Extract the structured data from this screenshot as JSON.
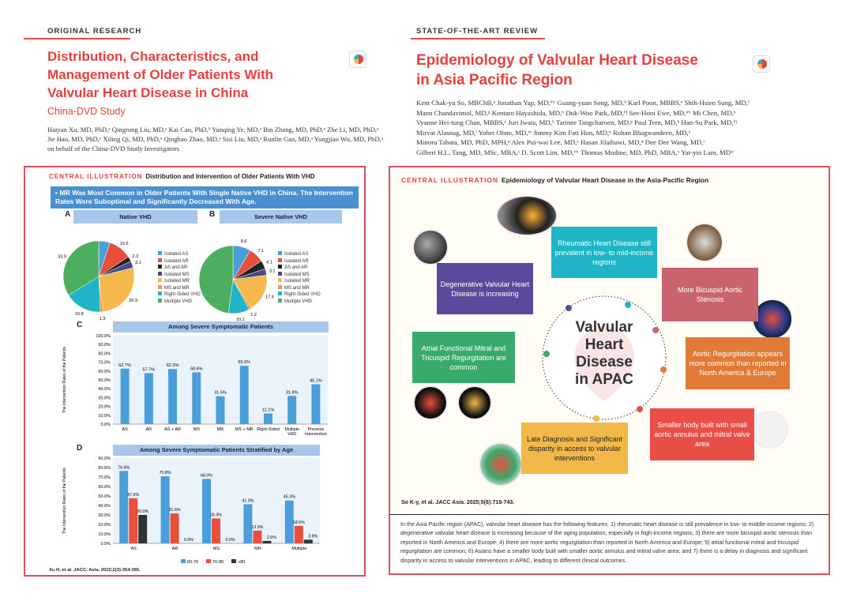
{
  "left": {
    "kicker": "ORIGINAL RESEARCH",
    "title_lines": [
      "Distribution, Characteristics, and",
      "Management of Older Patients With",
      "Valvular Heart Disease in China"
    ],
    "subtitle": "China-DVD Study",
    "authors_lines": [
      "Haiyan Xu, MD, PhD,ᵃ Qingrong Liu, MD,ᵃ Kai Cao, PhD,ᵇ Yunqing Ye, MD,ᵃ Bin Zhang, MD, PhD,ᵃ Zhe Li, MD, PhD,ᵃ",
      "Jie Hao, MD, PhD,ᵃ Xiling Qi, MD, PhD,ᵃ Qinghao Zhao, MD,ᵃ Sisi Liu, MD,ᵃ Runlin Gao, MD,ᵃ Yongjian Wu, MD, PhD,ᵃ",
      "on behalf of the China-DVD Study Investigators"
    ],
    "ci_label": "CENTRAL ILLUSTRATION",
    "ci_title": "Distribution and Intervention of Older Patients With VHD",
    "banner": "• MR Was Most Common in Older Patients With Single Native VHD in China. The Intervention Rates Were Suboptimal and Significantly Decreased With Age.",
    "panel_a": "A",
    "panel_b": "B",
    "panel_c": "C",
    "panel_d": "D",
    "citation": "Xu H, et al. JACC: Asia. 2022;2(3):354-365."
  },
  "right": {
    "kicker": "STATE-OF-THE-ART REVIEW",
    "title_lines": [
      "Epidemiology of Valvular Heart Disease",
      "in Asia Pacific Region"
    ],
    "authors_lines": [
      "Kent Chak-yu So, MBChB,ᵃ Jonathan Yap, MD,ᵇ'ᶜ Guang-yuan Song, MD,ᵈ Karl Poon, MBBS,ᵉ Shih-Hsien Sung, MD,ᶠ",
      "Mann Chandavimol, MD,ᵍ Kentaro Hayashida, MD,ʰ Duk-Woo Park, MD,ⁱ'ʲ See-Hooi Ewe, MD,ᵇ'ᶜ Mi Chen, MD,ᵏ",
      "Vyanne Hei-tung Chan, MBBS,ᵃ Juri Iwata, MD,ʰ Tarinee Tangcharoen, MD,ᵍ Paul Tern, MD,ᵇ Han-Su Park, MD,ⁱ'ʲ",
      "Mirvat Alasnag, MD,ˡ Yohei Ohno, MD,ᵐ Jimmy Kim Fatt Hon, MD,ⁿ Rohan Bhagwandeen, MD,ᵒ",
      "Minoru Tabata, MD, PhD, MPH,ᵖ Alex Pui-wai Lee, MD,ᵃ Hasan Jilaihawi, MD,ᵠ Dee Dee Wang, MD,ʳ",
      "Gilbert H.L. Tang, MD, MSc, MBA,ˢ D. Scott Lim, MD,ᵗ'ᵘ Thomas Modine, MD, PhD, MBA,ᵛ Yat-yin Lam, MDʷ"
    ],
    "ci_label": "CENTRAL ILLUSTRATION",
    "ci_title": "Epidemiology of Valvular Heart Disease in the Asia-Pacific Region",
    "center_lines": [
      "Valvular",
      "Heart",
      "Disease",
      "in APAC"
    ],
    "callouts": [
      {
        "text": "Degenerative Valvular Heart Disease is increasing",
        "color": "#5b4a9b"
      },
      {
        "text": "Rheumatic Heart Disease still prevalent in low- to mid-income regions",
        "color": "#1fb5c7"
      },
      {
        "text": "More Bicuspid Aortic Stenosis",
        "color": "#c9646e"
      },
      {
        "text": "Atrial Functional Mitral and Tricuspid Regurgitation are common",
        "color": "#3aaa6c"
      },
      {
        "text": "Aortic Regurgitation appears more common than reported in North America & Europe",
        "color": "#e07a37"
      },
      {
        "text": "Late Diagnosis and Significant disparity in access to valvular interventions",
        "color": "#f2b94a"
      },
      {
        "text": "Smaller body built with small aortic annulus and mitral valve area",
        "color": "#e94f47"
      }
    ],
    "citation": "So K-y, et al. JACC Asia. 2025;5(6):718-743.",
    "summary": "In the Asia Pacific region (APAC), valvular heart disease has the following features: 1) rheumatic heart disease is still prevalence in low- to middle-income regions; 2) degenerative valvular heart disease is increasing because of the aging population, especially in high-income regions; 3) there are more bicuspid aortic stenosis than reported in North America and Europe; 4) there are more aortic regurgitation than reported in North America and Europe; 5) atrial functional mitral and tricuspid regurgitation are common; 6) Asians have a smaller body built with smaller aortic annulus and mitral valve area; and 7) there is a delay in diagnosis and significant disparity in access to valvular interventions in APAC, leading to different clinical outcomes."
  },
  "colors": {
    "accent": "#e8413c",
    "pie": [
      "#4a9fd8",
      "#e8503c",
      "#222222",
      "#4a4a8a",
      "#f5b84c",
      "#f29a4a",
      "#1fb5c7",
      "#4caf60"
    ],
    "bar": "#4a9fd8",
    "age": [
      "#4a9fd8",
      "#e8503c",
      "#333333"
    ]
  },
  "chart_data": [
    {
      "type": "pie",
      "title": "Native VHD",
      "categories": [
        "Isolated AS",
        "Isolated AR",
        "AS and AR",
        "Isolated MS",
        "Isolated MR",
        "MS and MR",
        "Right-Sided VHD",
        "Multiple VHD"
      ],
      "values": [
        5.1,
        10.6,
        2.3,
        3.1,
        26.9,
        1.3,
        16.8,
        33.9
      ]
    },
    {
      "type": "pie",
      "title": "Severe Native VHD",
      "categories": [
        "Isolated AS",
        "Isolated AR",
        "AS and AR",
        "Isolated MS",
        "Isolated MR",
        "MS and MR",
        "Right-Sided VHD",
        "Multiple VHD"
      ],
      "values": [
        8.6,
        7.1,
        4.1,
        3.1,
        17.9,
        1.2,
        10.1,
        47.8
      ]
    },
    {
      "type": "bar",
      "title": "Among Severe Symptomatic Patients",
      "ylabel": "The Intervention Rates of the Patients",
      "ylim": [
        0,
        100
      ],
      "yticks": [
        "0.0%",
        "10.0%",
        "20.0%",
        "30.0%",
        "40.0%",
        "50.0%",
        "60.0%",
        "70.0%",
        "80.0%",
        "90.0%",
        "100.0%"
      ],
      "categories": [
        "AS",
        "AR",
        "AS + AR",
        "MS",
        "MR",
        "MS + MR",
        "Right-Sided",
        "Multiple VHD",
        "Previous Intervention"
      ],
      "values": [
        62.7,
        57.7,
        62.3,
        58.6,
        31.5,
        65.9,
        12.1,
        31.9,
        45.1
      ],
      "labels": [
        "62.7%",
        "57.7%",
        "62.3%",
        "58.6%",
        "31.5%",
        "65.9%",
        "12.1%",
        "31.9%",
        "45.1%"
      ]
    },
    {
      "type": "bar",
      "title": "Among Severe Symptomatic Patients Stratified by Age",
      "ylabel": "The Intervention Rates of the Patients",
      "ylim": [
        0,
        90
      ],
      "yticks": [
        "0.0%",
        "10.0%",
        "20.0%",
        "30.0%",
        "40.0%",
        "50.0%",
        "60.0%",
        "70.0%",
        "80.0%",
        "90.0%"
      ],
      "categories": [
        "AS",
        "AR",
        "MS",
        "MR",
        "Multiple"
      ],
      "legend": "bottom",
      "series": [
        {
          "name": "60-70",
          "values": [
            76.4,
            70.8,
            68.0,
            41.3,
            45.3
          ]
        },
        {
          "name": "70-80",
          "values": [
            47.6,
            31.6,
            26.3,
            13.5,
            18.5
          ]
        },
        {
          "name": ">80",
          "values": [
            30.0,
            0.0,
            0.0,
            2.6,
            3.9
          ]
        }
      ]
    }
  ]
}
